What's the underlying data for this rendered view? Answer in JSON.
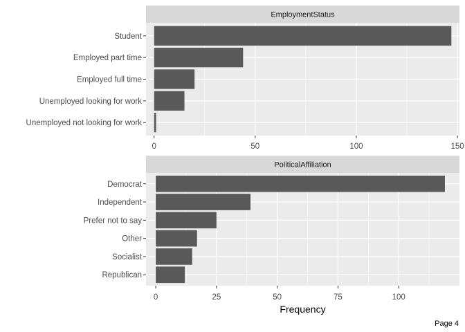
{
  "chart_data": [
    {
      "type": "bar",
      "orientation": "horizontal",
      "title": "EmploymentStatus",
      "categories": [
        "Student",
        "Employed part time",
        "Employed full time",
        "Unemployed looking for work",
        "Unemployed not looking for work"
      ],
      "values": [
        147,
        44,
        20,
        15,
        1
      ],
      "xlim": [
        -4,
        151
      ],
      "xticks": [
        0,
        50,
        100,
        150
      ],
      "xlabel": "",
      "bar_color": "#595959",
      "panel_bg": "#ebebeb",
      "strip_bg": "#d9d9d9",
      "grid": true
    },
    {
      "type": "bar",
      "orientation": "horizontal",
      "title": "PoliticalAffiliation",
      "categories": [
        "Democrat",
        "Independent",
        "Prefer not to say",
        "Other",
        "Socialist",
        "Republican"
      ],
      "values": [
        119,
        39,
        25,
        17,
        15,
        12
      ],
      "xlim": [
        -4,
        125
      ],
      "xticks": [
        0,
        25,
        50,
        75,
        100
      ],
      "xlabel": "Frequency",
      "bar_color": "#595959",
      "panel_bg": "#ebebeb",
      "strip_bg": "#d9d9d9",
      "grid": true
    }
  ],
  "footer": {
    "page_label": "Page 4"
  }
}
